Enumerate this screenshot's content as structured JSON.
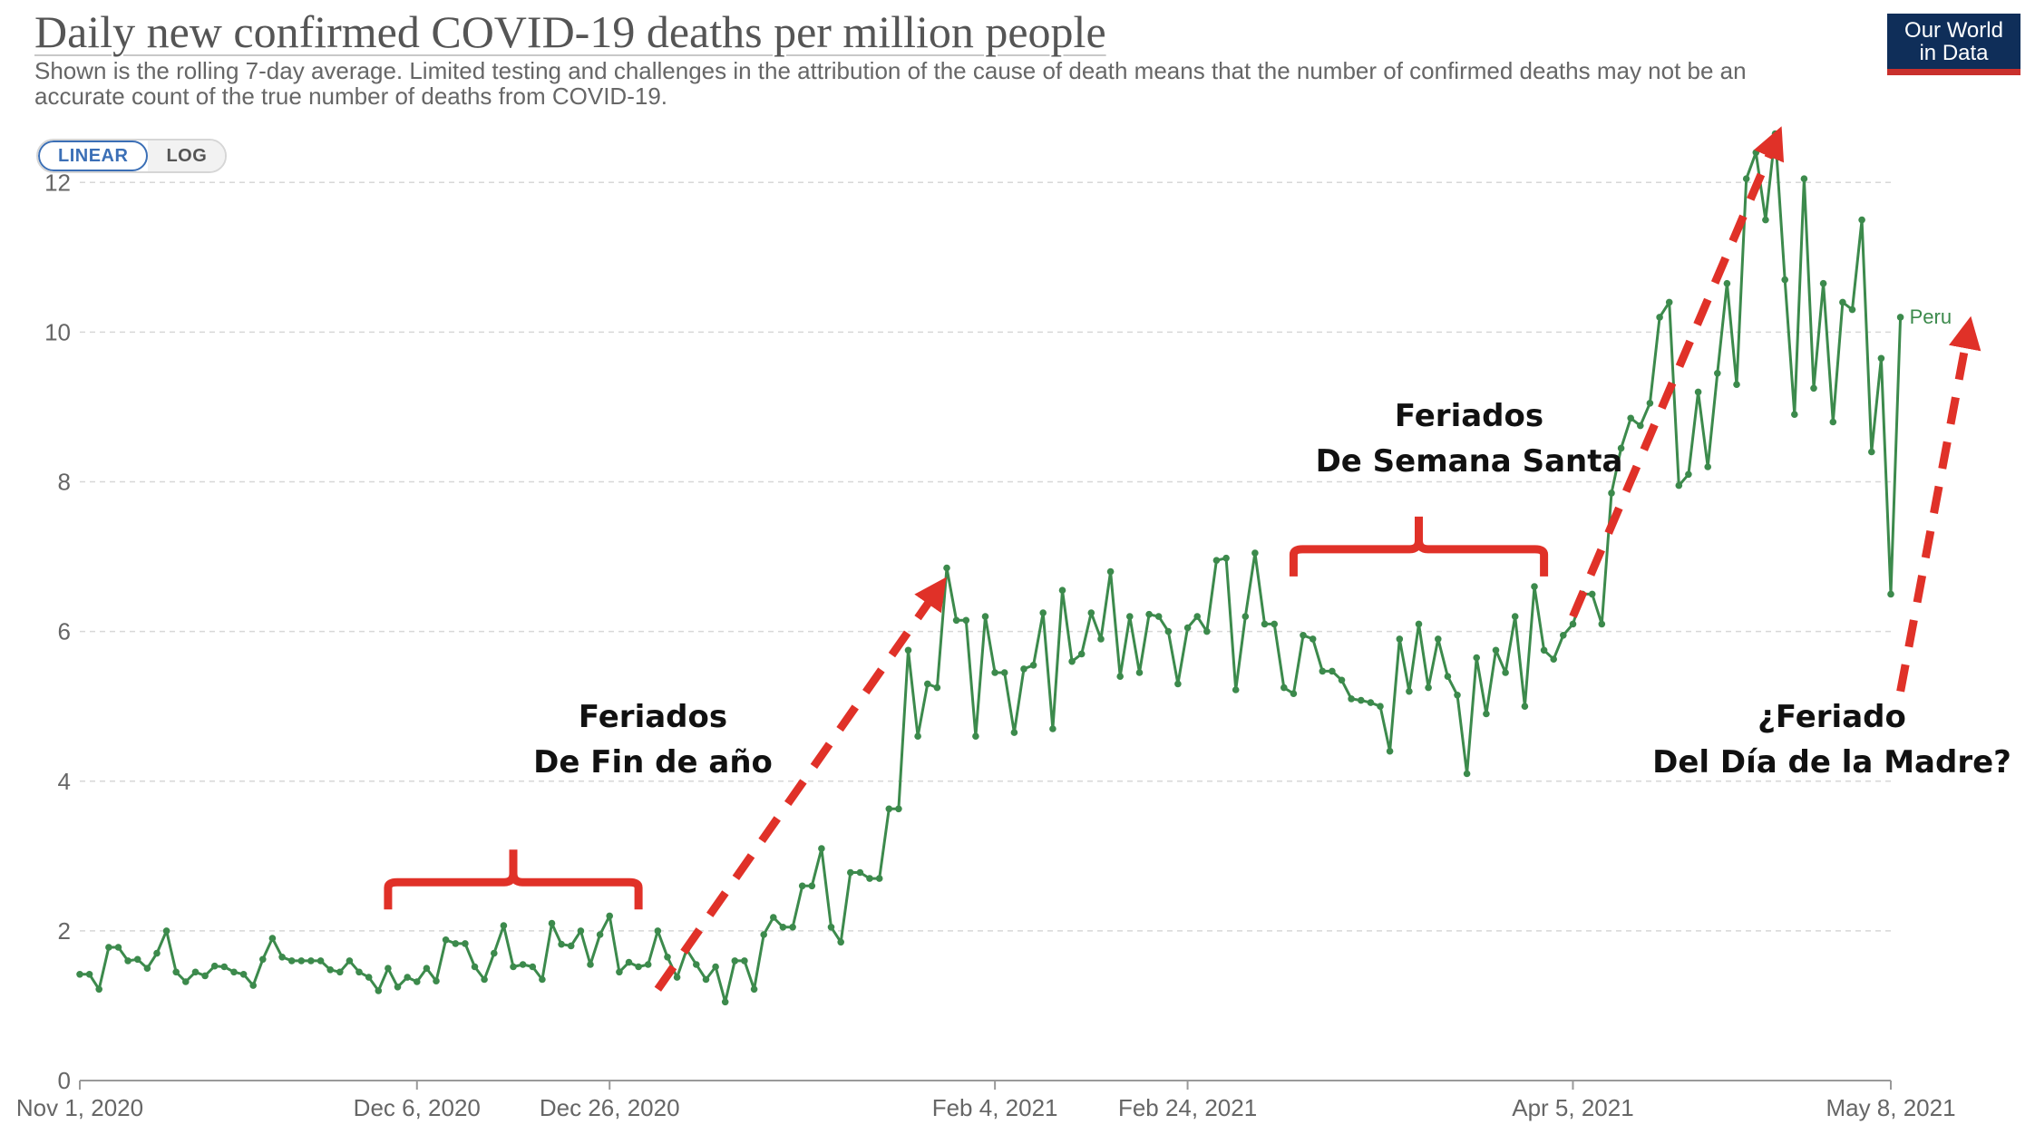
{
  "title": "Daily new confirmed COVID-19 deaths per million people",
  "subtitle": "Shown is the rolling 7-day average. Limited testing and challenges in the attribution of the cause of death means that the number of confirmed deaths may not be an accurate count of the true number of deaths from COVID-19.",
  "logo": {
    "line1": "Our World",
    "line2": "in Data"
  },
  "scale_toggle": {
    "linear_label": "LINEAR",
    "log_label": "LOG",
    "active": "linear"
  },
  "colors": {
    "series": "#3c8a4c",
    "arrows": "#e03128",
    "brackets": "#e03128",
    "grid": "#d7d7d7"
  },
  "annotations": [
    {
      "lines": [
        "Feriados",
        "De Fin de año"
      ],
      "date": "2020-12-26"
    },
    {
      "lines": [
        "Feriados",
        "De Semana Santa"
      ],
      "date": "2021-03-29"
    },
    {
      "lines": [
        "¿Feriado",
        "Del Día de la Madre?"
      ],
      "date": "2021-05-08"
    }
  ],
  "chart_data": {
    "type": "line",
    "ylim": [
      0,
      12.5
    ],
    "xlim": [
      "2020-11-01",
      "2021-05-08"
    ],
    "y_ticks": [
      0,
      2,
      4,
      6,
      8,
      10,
      12
    ],
    "x_ticks": [
      {
        "date": "2020-11-01",
        "label": "Nov 1, 2020"
      },
      {
        "date": "2020-12-06",
        "label": "Dec 6, 2020"
      },
      {
        "date": "2020-12-26",
        "label": "Dec 26, 2020"
      },
      {
        "date": "2021-02-04",
        "label": "Feb 4, 2021"
      },
      {
        "date": "2021-02-24",
        "label": "Feb 24, 2021"
      },
      {
        "date": "2021-04-05",
        "label": "Apr 5, 2021"
      },
      {
        "date": "2021-05-08",
        "label": "May 8, 2021"
      }
    ],
    "grid": true,
    "series": [
      {
        "name": "Peru",
        "start_date": "2020-11-01",
        "values": [
          1.42,
          1.42,
          1.22,
          1.78,
          1.78,
          1.6,
          1.62,
          1.5,
          1.7,
          2.0,
          1.45,
          1.32,
          1.45,
          1.4,
          1.53,
          1.52,
          1.45,
          1.42,
          1.27,
          1.62,
          1.9,
          1.65,
          1.6,
          1.6,
          1.6,
          1.6,
          1.48,
          1.45,
          1.6,
          1.45,
          1.38,
          1.2,
          1.5,
          1.25,
          1.38,
          1.32,
          1.5,
          1.33,
          1.88,
          1.83,
          1.83,
          1.52,
          1.35,
          1.7,
          2.07,
          1.52,
          1.55,
          1.52,
          1.35,
          2.1,
          1.82,
          1.8,
          2.0,
          1.55,
          1.95,
          2.2,
          1.45,
          1.58,
          1.52,
          1.55,
          2.0,
          1.65,
          1.38,
          1.75,
          1.55,
          1.35,
          1.52,
          1.05,
          1.6,
          1.6,
          1.22,
          1.95,
          2.18,
          2.05,
          2.05,
          2.6,
          2.6,
          3.1,
          2.05,
          1.85,
          2.78,
          2.78,
          2.7,
          2.7,
          3.63,
          3.63,
          5.75,
          4.6,
          5.3,
          5.25,
          6.85,
          6.15,
          6.15,
          4.6,
          6.2,
          5.45,
          5.45,
          4.65,
          5.5,
          5.55,
          6.25,
          4.7,
          6.55,
          5.6,
          5.7,
          6.25,
          5.9,
          6.8,
          5.4,
          6.2,
          5.45,
          6.23,
          6.2,
          6.0,
          5.3,
          6.05,
          6.2,
          6.0,
          6.95,
          6.98,
          5.22,
          6.2,
          7.05,
          6.1,
          6.1,
          5.25,
          5.17,
          5.95,
          5.9,
          5.47,
          5.47,
          5.35,
          5.1,
          5.08,
          5.05,
          5.0,
          4.4,
          5.9,
          5.2,
          6.1,
          5.25,
          5.9,
          5.4,
          5.15,
          4.1,
          5.65,
          4.9,
          5.75,
          5.45,
          6.2,
          5.0,
          6.6,
          5.75,
          5.63,
          5.95,
          6.1,
          6.5,
          6.5,
          6.1,
          7.85,
          8.45,
          8.85,
          8.75,
          9.05,
          10.2,
          10.4,
          7.95,
          8.1,
          9.2,
          8.2,
          9.45,
          10.65,
          9.3,
          12.05,
          12.4,
          11.5,
          12.65,
          10.7,
          8.9,
          12.05,
          9.25,
          10.65,
          8.8,
          10.4,
          10.3,
          11.5,
          8.4,
          9.65,
          6.5,
          10.2
        ]
      }
    ]
  }
}
